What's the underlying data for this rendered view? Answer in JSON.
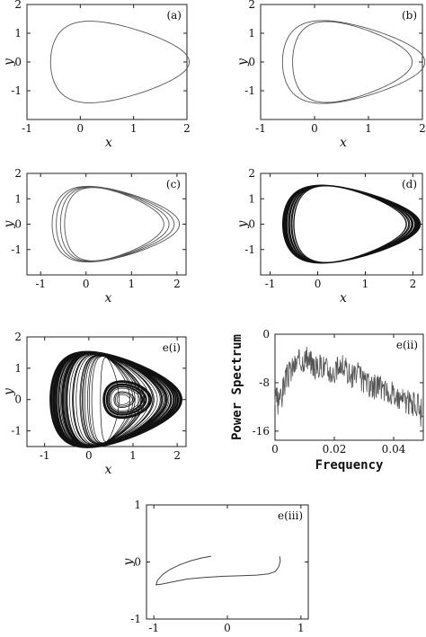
{
  "chart_data": [
    {
      "id": "a",
      "type": "line",
      "panel_label": "(a)",
      "xlabel": "x",
      "ylabel": "y",
      "xlim": [
        -1,
        2
      ],
      "ylim": [
        -2,
        2
      ],
      "xticks": [
        -1,
        0,
        1,
        2
      ],
      "yticks": [
        -1,
        0,
        1,
        2
      ],
      "orbit": {
        "period": 1,
        "xc": 0.6,
        "xr": 1.3,
        "yr": 1.38,
        "skew": 0.22
      },
      "series": [
        {
          "values_description": "",
          "loops": 1
        }
      ]
    },
    {
      "id": "b",
      "type": "line",
      "panel_label": "(b)",
      "xlabel": "x",
      "ylabel": "y",
      "xlim": [
        -1,
        2
      ],
      "ylim": [
        -2,
        2
      ],
      "xticks": [
        -1,
        0,
        1,
        2
      ],
      "yticks": [
        -1,
        0,
        1,
        2
      ],
      "orbit": {
        "period": 2,
        "xc": 0.58,
        "xr": 1.32,
        "yr": 1.4,
        "skew": 0.22,
        "spread": 0.16
      },
      "series": [
        {
          "values_description": "",
          "loops": 2
        }
      ]
    },
    {
      "id": "c",
      "type": "line",
      "panel_label": "(c)",
      "xlabel": "x",
      "ylabel": "y",
      "xlim": [
        -1.3,
        2.2
      ],
      "ylim": [
        -2,
        2
      ],
      "xticks": [
        -1,
        0,
        1,
        2
      ],
      "yticks": [
        -1,
        0,
        1,
        2
      ],
      "orbit": {
        "period": 4,
        "xc": 0.5,
        "xr": 1.4,
        "yr": 1.45,
        "skew": 0.22,
        "spread": 0.22
      },
      "series": [
        {
          "values_description": "",
          "loops": 4
        }
      ]
    },
    {
      "id": "d",
      "type": "line",
      "panel_label": "(d)",
      "xlabel": "x",
      "ylabel": "y",
      "xlim": [
        -1.2,
        2.2
      ],
      "ylim": [
        -2,
        2
      ],
      "xticks": [
        -1,
        0,
        1,
        2
      ],
      "yticks": [
        -1,
        0,
        1,
        2
      ],
      "orbit": {
        "period": 60,
        "xc": 0.55,
        "xr": 1.45,
        "yr": 1.5,
        "skew": 0.22,
        "spread": 0.28
      },
      "series": [
        {
          "values_description": "",
          "loops": 60
        }
      ]
    },
    {
      "id": "e_i",
      "type": "line",
      "panel_label": "e(i)",
      "xlabel": "x",
      "ylabel": "y",
      "xlim": [
        -1.4,
        2.2
      ],
      "ylim": [
        -1.5,
        2
      ],
      "xticks": [
        -1,
        0,
        1,
        2
      ],
      "yticks": [
        -1,
        0,
        1,
        2
      ],
      "orbit": {
        "period": 90,
        "xc": 0.45,
        "xr": 1.5,
        "yr": 1.5,
        "skew": 0.22,
        "spread": 0.9,
        "spiral_x": 0.75
      },
      "series": [
        {
          "values_description": "",
          "loops": 90
        }
      ]
    },
    {
      "id": "e_ii",
      "type": "line",
      "panel_label": "e(ii)",
      "xlabel": "Frequency",
      "ylabel": "Power Spectrum",
      "xlim": [
        0,
        0.05
      ],
      "ylim": [
        -17.5,
        0
      ],
      "xticks": [
        0,
        0.02,
        0.04
      ],
      "yticks": [
        0,
        -8,
        -16
      ],
      "x": [
        0,
        0.002,
        0.004,
        0.006,
        0.008,
        0.01,
        0.012,
        0.014,
        0.016,
        0.018,
        0.02,
        0.022,
        0.024,
        0.026,
        0.028,
        0.03,
        0.032,
        0.034,
        0.036,
        0.038,
        0.04,
        0.042,
        0.044,
        0.046,
        0.048,
        0.05
      ],
      "y": [
        -11.0,
        -10.0,
        -7.0,
        -5.5,
        -4.5,
        -4.0,
        -4.5,
        -5.5,
        -5.0,
        -6.0,
        -6.5,
        -5.0,
        -6.0,
        -7.0,
        -6.5,
        -8.0,
        -8.5,
        -8.5,
        -9.0,
        -9.5,
        -10.0,
        -10.5,
        -11.0,
        -11.5,
        -11.8,
        -12.0
      ],
      "series": [
        {
          "values_description": ""
        }
      ]
    },
    {
      "id": "e_iii",
      "type": "line",
      "panel_label": "e(iii)",
      "xlabel": "x",
      "ylabel": "y",
      "xlim": [
        -1.1,
        1.1
      ],
      "ylim": [
        -1,
        1
      ],
      "xticks": [
        -1,
        0,
        1
      ],
      "yticks": [
        -1,
        0,
        1
      ],
      "curve": {
        "x": [
          -0.22,
          -0.35,
          -0.5,
          -0.65,
          -0.78,
          -0.88,
          -0.95,
          -0.97,
          -0.9,
          -0.75,
          -0.55,
          -0.3,
          -0.05,
          0.2,
          0.4,
          0.55,
          0.65,
          0.7,
          0.72,
          0.71
        ],
        "y": [
          0.1,
          0.07,
          0.02,
          -0.05,
          -0.13,
          -0.22,
          -0.32,
          -0.4,
          -0.39,
          -0.35,
          -0.3,
          -0.27,
          -0.25,
          -0.24,
          -0.23,
          -0.21,
          -0.17,
          -0.08,
          0.02,
          0.1
        ]
      },
      "series": [
        {
          "values_description": ""
        }
      ]
    }
  ]
}
